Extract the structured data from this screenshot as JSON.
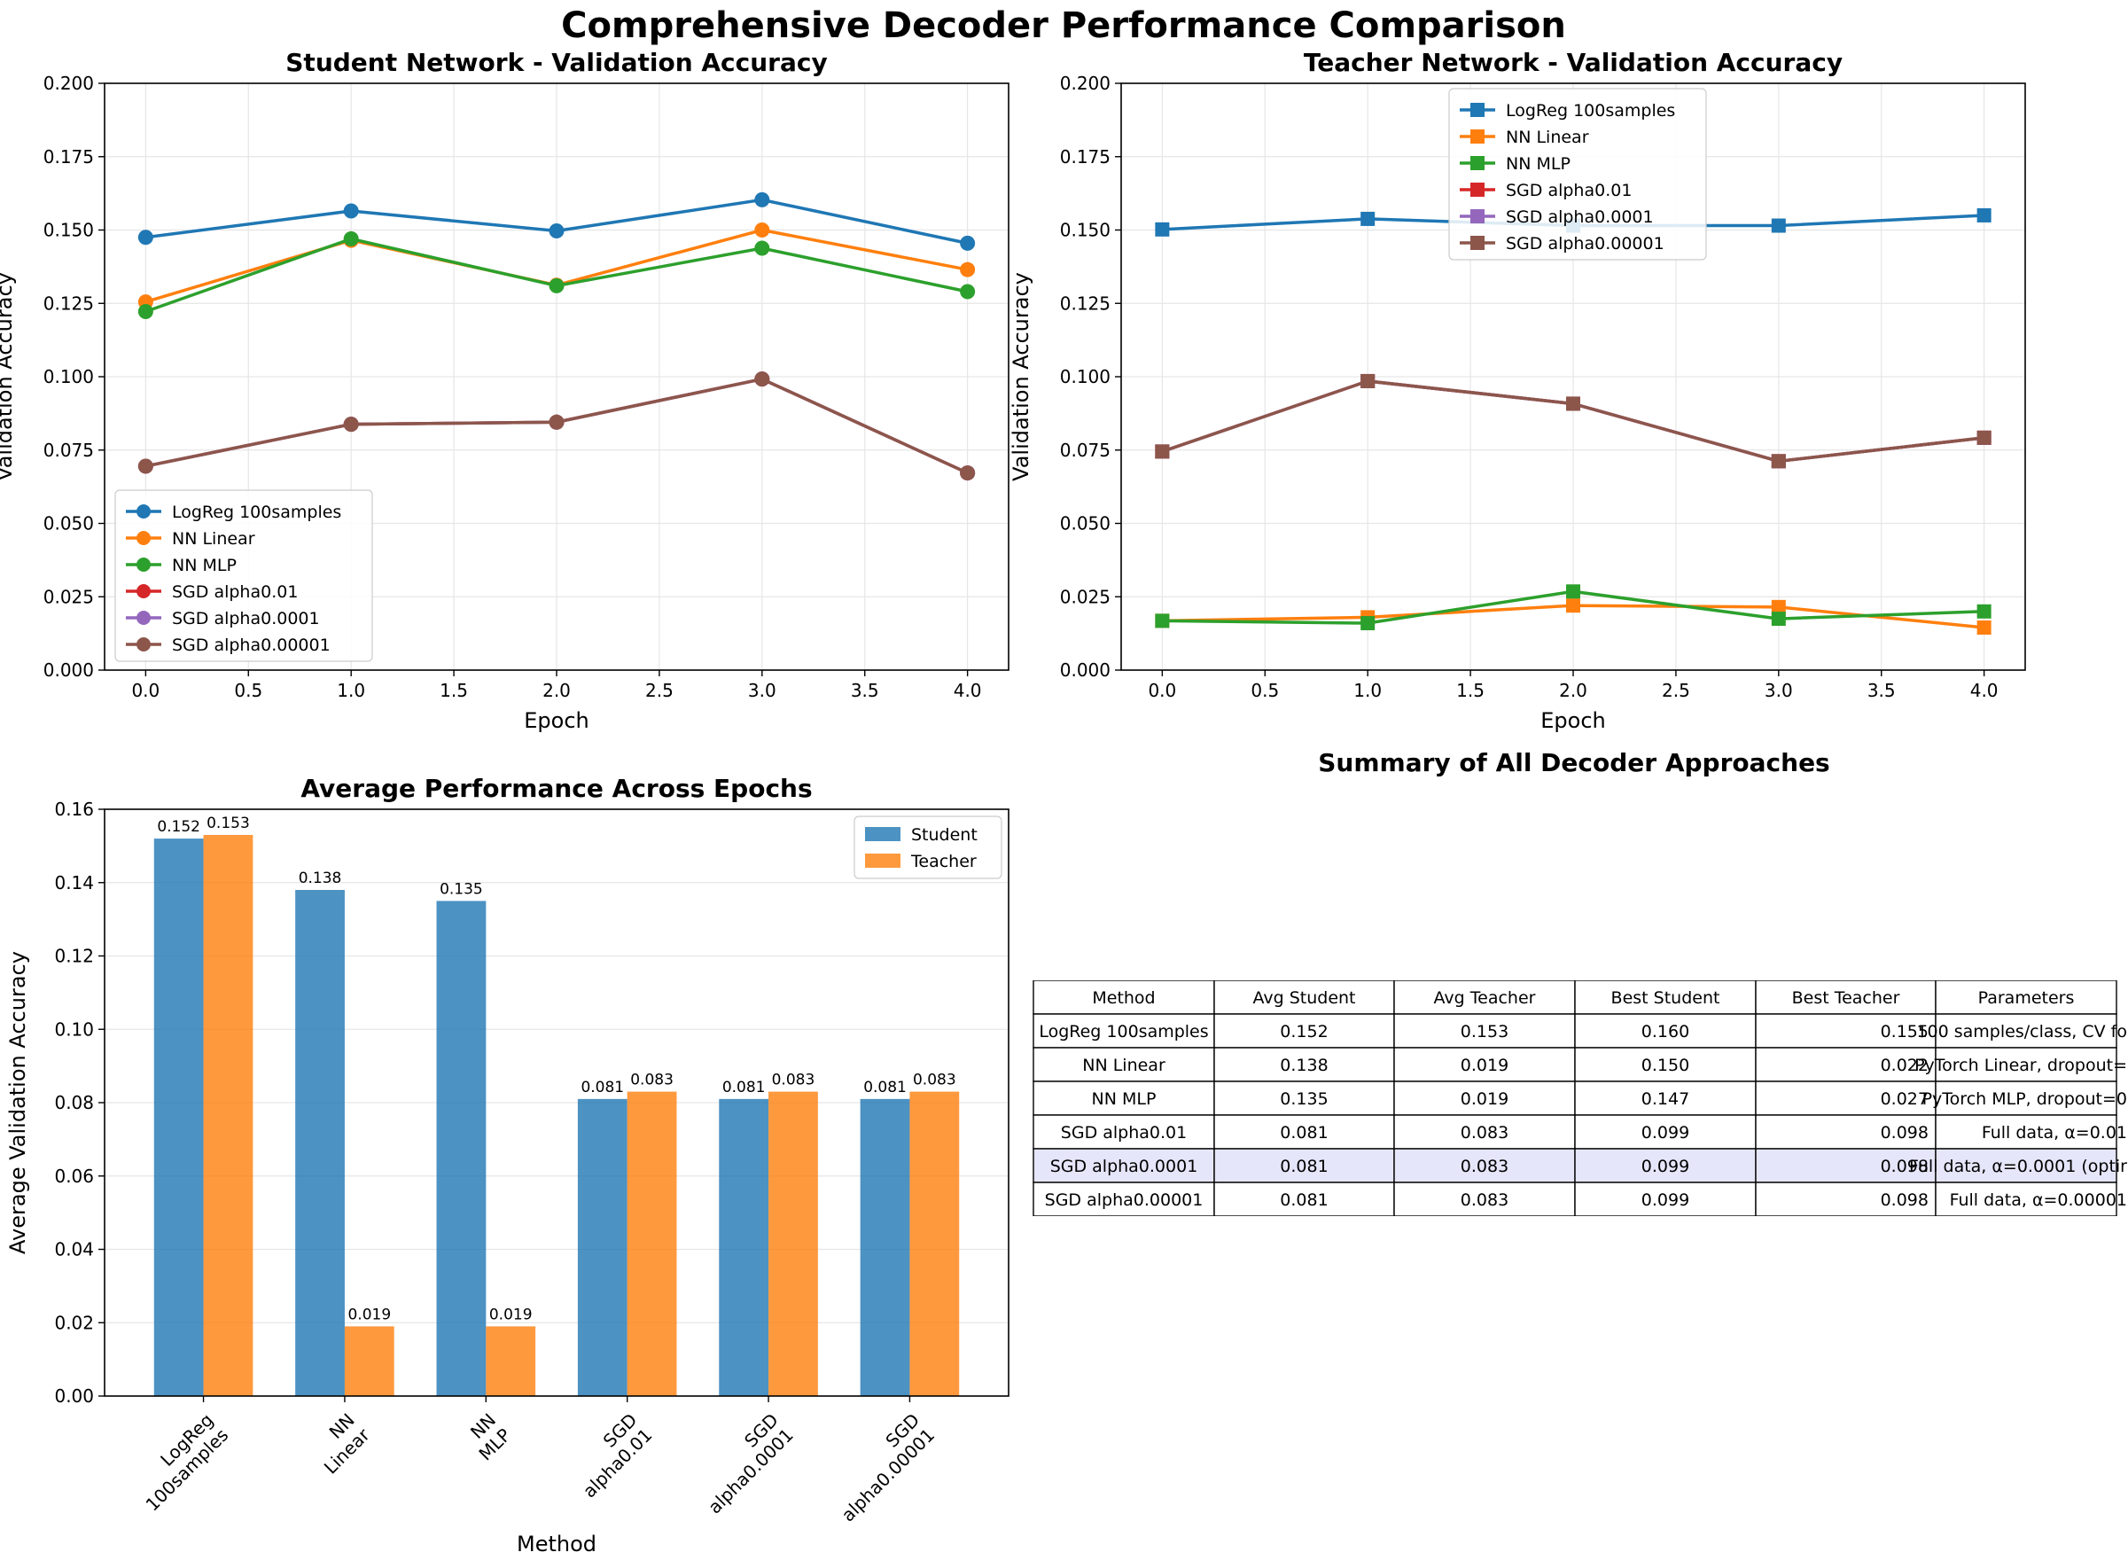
{
  "suptitle": "Comprehensive Decoder Performance Comparison",
  "colors": {
    "LogReg": "#1f77b4",
    "Linear": "#ff7f0e",
    "MLP": "#2ca02c",
    "SGD001": "#d62728",
    "SGD00001": "#9467bd",
    "SGD000001": "#8c564b",
    "grid": "#e6e6e6",
    "highlight": "#e6e6fa"
  },
  "chart_data": [
    {
      "type": "line",
      "title": "Student Network - Validation Accuracy",
      "xlabel": "Epoch",
      "ylabel": "Validation Accuracy",
      "xlim": [
        -0.2,
        4.2
      ],
      "ylim": [
        0,
        0.2
      ],
      "xticks": [
        "0.0",
        "0.5",
        "1.0",
        "1.5",
        "2.0",
        "2.5",
        "3.0",
        "3.5",
        "4.0"
      ],
      "yticks": [
        "0.000",
        "0.025",
        "0.050",
        "0.075",
        "0.100",
        "0.125",
        "0.150",
        "0.175",
        "0.200"
      ],
      "marker": "circle",
      "legend_position": "lower-left",
      "grid": true,
      "x": [
        0,
        1,
        2,
        3,
        4
      ],
      "series": [
        {
          "name": "LogReg 100samples",
          "color": "#1f77b4",
          "values": [
            0.1475,
            0.1565,
            0.1497,
            0.1603,
            0.1455
          ]
        },
        {
          "name": "NN Linear",
          "color": "#ff7f0e",
          "values": [
            0.1255,
            0.1465,
            0.1312,
            0.15,
            0.1365
          ]
        },
        {
          "name": "NN MLP",
          "color": "#2ca02c",
          "values": [
            0.1222,
            0.147,
            0.131,
            0.1438,
            0.129
          ]
        },
        {
          "name": "SGD alpha0.01",
          "color": "#d62728",
          "values": [
            0.0695,
            0.0838,
            0.0845,
            0.0992,
            0.0672
          ]
        },
        {
          "name": "SGD alpha0.0001",
          "color": "#9467bd",
          "values": [
            0.0695,
            0.0838,
            0.0845,
            0.0992,
            0.0672
          ]
        },
        {
          "name": "SGD alpha0.00001",
          "color": "#8c564b",
          "values": [
            0.0695,
            0.0838,
            0.0845,
            0.0992,
            0.0672
          ]
        }
      ]
    },
    {
      "type": "line",
      "title": "Teacher Network - Validation Accuracy",
      "xlabel": "Epoch",
      "ylabel": "Validation Accuracy",
      "xlim": [
        -0.2,
        4.2
      ],
      "ylim": [
        0,
        0.2
      ],
      "xticks": [
        "0.0",
        "0.5",
        "1.0",
        "1.5",
        "2.0",
        "2.5",
        "3.0",
        "3.5",
        "4.0"
      ],
      "yticks": [
        "0.000",
        "0.025",
        "0.050",
        "0.075",
        "0.100",
        "0.125",
        "0.150",
        "0.175",
        "0.200"
      ],
      "marker": "square",
      "legend_position": "upper-center",
      "grid": true,
      "x": [
        0,
        1,
        2,
        3,
        4
      ],
      "series": [
        {
          "name": "LogReg 100samples",
          "color": "#1f77b4",
          "values": [
            0.1502,
            0.1538,
            0.1515,
            0.1515,
            0.155
          ]
        },
        {
          "name": "NN Linear",
          "color": "#ff7f0e",
          "values": [
            0.0168,
            0.018,
            0.022,
            0.0215,
            0.0145
          ]
        },
        {
          "name": "NN MLP",
          "color": "#2ca02c",
          "values": [
            0.0168,
            0.016,
            0.0268,
            0.0175,
            0.02
          ]
        },
        {
          "name": "SGD alpha0.01",
          "color": "#d62728",
          "values": [
            0.0745,
            0.0985,
            0.0908,
            0.0712,
            0.0792
          ]
        },
        {
          "name": "SGD alpha0.0001",
          "color": "#9467bd",
          "values": [
            0.0745,
            0.0985,
            0.0908,
            0.0712,
            0.0792
          ]
        },
        {
          "name": "SGD alpha0.00001",
          "color": "#8c564b",
          "values": [
            0.0745,
            0.0985,
            0.0908,
            0.0712,
            0.0792
          ]
        }
      ]
    },
    {
      "type": "bar",
      "title": "Average Performance Across Epochs",
      "xlabel": "Method",
      "ylabel": "Average Validation Accuracy",
      "ylim": [
        0,
        0.16
      ],
      "yticks": [
        "0.00",
        "0.02",
        "0.04",
        "0.06",
        "0.08",
        "0.10",
        "0.12",
        "0.14",
        "0.16"
      ],
      "categories": [
        [
          "LogReg",
          "100samples"
        ],
        [
          "NN",
          "Linear"
        ],
        [
          "NN",
          "MLP"
        ],
        [
          "SGD",
          "alpha0.01"
        ],
        [
          "SGD",
          "alpha0.0001"
        ],
        [
          "SGD",
          "alpha0.00001"
        ]
      ],
      "legend_position": "upper-right",
      "grid": true,
      "series": [
        {
          "name": "Student",
          "color": "#1f77b4",
          "values": [
            0.152,
            0.138,
            0.135,
            0.081,
            0.081,
            0.081
          ],
          "labels": [
            "0.152",
            "0.138",
            "0.135",
            "0.081",
            "0.081",
            "0.081"
          ]
        },
        {
          "name": "Teacher",
          "color": "#ff7f0e",
          "values": [
            0.153,
            0.019,
            0.019,
            0.083,
            0.083,
            0.083
          ],
          "labels": [
            "0.153",
            "0.019",
            "0.019",
            "0.083",
            "0.083",
            "0.083"
          ]
        }
      ]
    },
    {
      "type": "table",
      "title": "Summary of All Decoder Approaches",
      "columns": [
        "Method",
        "Avg Student",
        "Avg Teacher",
        "Best Student",
        "Best Teacher",
        "Parameters"
      ],
      "rows": [
        [
          "LogReg 100samples",
          "0.152",
          "0.153",
          "0.160",
          "0.155",
          "100 samples/class, CV fo"
        ],
        [
          "NN Linear",
          "0.138",
          "0.019",
          "0.150",
          "0.022",
          "PyTorch Linear, dropout="
        ],
        [
          "NN MLP",
          "0.135",
          "0.019",
          "0.147",
          "0.027",
          "PyTorch MLP, dropout=0"
        ],
        [
          "SGD alpha0.01",
          "0.081",
          "0.083",
          "0.099",
          "0.098",
          "Full data, α=0.01"
        ],
        [
          "SGD alpha0.0001",
          "0.081",
          "0.083",
          "0.099",
          "0.098",
          "Full data, α=0.0001 (optir"
        ],
        [
          "SGD alpha0.00001",
          "0.081",
          "0.083",
          "0.099",
          "0.098",
          "Full data, α=0.00001"
        ]
      ],
      "highlight_row": 4
    }
  ]
}
